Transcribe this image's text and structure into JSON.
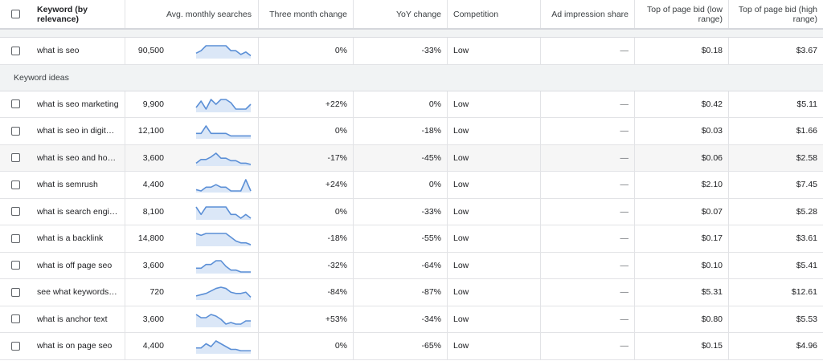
{
  "headers": {
    "keyword": "Keyword (by relevance)",
    "avg": "Avg. monthly searches",
    "three": "Three month change",
    "yoy": "YoY change",
    "competition": "Competition",
    "impression": "Ad impression share",
    "bid_low": "Top of page bid (low range)",
    "bid_high": "Top of page bid (high range)"
  },
  "seed": {
    "keyword": "what is seo",
    "avg": "90,500",
    "three": "0%",
    "yoy": "-33%",
    "competition": "Low",
    "impression": "—",
    "bid_low": "$0.18",
    "bid_high": "$3.67",
    "trend": [
      3,
      5,
      9,
      9,
      9,
      9,
      9,
      5,
      5,
      2,
      4,
      1
    ]
  },
  "section_label": "Keyword ideas",
  "rows": [
    {
      "keyword": "what is seo marketing",
      "keyword_display": "what is seo marketing",
      "avg": "9,900",
      "three": "+22%",
      "yoy": "0%",
      "competition": "Low",
      "impression": "—",
      "bid_low": "$0.42",
      "bid_high": "$5.11",
      "trend": [
        2,
        6,
        1,
        7,
        4,
        7,
        7,
        5,
        1,
        1,
        1,
        4
      ]
    },
    {
      "keyword": "what is seo in digital ...",
      "avg": "12,100",
      "three": "0%",
      "yoy": "-18%",
      "competition": "Low",
      "impression": "—",
      "bid_low": "$0.03",
      "bid_high": "$1.66",
      "trend": [
        3,
        3,
        9,
        3,
        3,
        3,
        3,
        1,
        1,
        1,
        1,
        1
      ]
    },
    {
      "keyword": "what is seo and how i...",
      "avg": "3,600",
      "three": "-17%",
      "yoy": "-45%",
      "competition": "Low",
      "impression": "—",
      "bid_low": "$0.06",
      "bid_high": "$2.58",
      "trend": [
        1,
        4,
        4,
        6,
        9,
        5,
        5,
        3,
        3,
        1,
        1,
        0
      ]
    },
    {
      "keyword": "what is semrush",
      "avg": "4,400",
      "three": "+24%",
      "yoy": "0%",
      "competition": "Low",
      "impression": "—",
      "bid_low": "$2.10",
      "bid_high": "$7.45",
      "trend": [
        1,
        0,
        3,
        3,
        5,
        3,
        3,
        0,
        0,
        0,
        9,
        0
      ]
    },
    {
      "keyword": "what is search engine...",
      "avg": "8,100",
      "three": "0%",
      "yoy": "-33%",
      "competition": "Low",
      "impression": "—",
      "bid_low": "$0.07",
      "bid_high": "$5.28",
      "trend": [
        6,
        2,
        6,
        6,
        6,
        6,
        6,
        2,
        2,
        0,
        2,
        0
      ]
    },
    {
      "keyword": "what is a backlink",
      "avg": "14,800",
      "three": "-18%",
      "yoy": "-55%",
      "competition": "Low",
      "impression": "—",
      "bid_low": "$0.17",
      "bid_high": "$3.61",
      "trend": [
        6,
        5,
        6,
        6,
        6,
        6,
        6,
        4,
        2,
        1,
        1,
        0
      ]
    },
    {
      "keyword": "what is off page seo",
      "avg": "3,600",
      "three": "-32%",
      "yoy": "-64%",
      "competition": "Low",
      "impression": "—",
      "bid_low": "$0.10",
      "bid_high": "$5.41",
      "trend": [
        2,
        2,
        4,
        4,
        6,
        6,
        3,
        1,
        1,
        0,
        0,
        0
      ]
    },
    {
      "keyword": "see what keywords a ...",
      "avg": "720",
      "three": "-84%",
      "yoy": "-87%",
      "competition": "Low",
      "impression": "—",
      "bid_low": "$5.31",
      "bid_high": "$12.61",
      "trend": [
        2,
        3,
        4,
        6,
        8,
        9,
        8,
        5,
        4,
        4,
        5,
        1
      ]
    },
    {
      "keyword": "what is anchor text",
      "avg": "3,600",
      "three": "+53%",
      "yoy": "-34%",
      "competition": "Low",
      "impression": "—",
      "bid_low": "$0.80",
      "bid_high": "$5.53",
      "trend": [
        7,
        5,
        5,
        7,
        6,
        4,
        1,
        2,
        1,
        1,
        3,
        3
      ]
    },
    {
      "keyword": "what is on page seo",
      "avg": "4,400",
      "three": "0%",
      "yoy": "-65%",
      "competition": "Low",
      "impression": "—",
      "bid_low": "$0.15",
      "bid_high": "$4.96",
      "trend": [
        3,
        3,
        6,
        4,
        8,
        6,
        4,
        2,
        2,
        1,
        1,
        1
      ]
    }
  ],
  "colors": {
    "trend_line": "#5b8fd6",
    "trend_fill": "#dbe7f7"
  }
}
